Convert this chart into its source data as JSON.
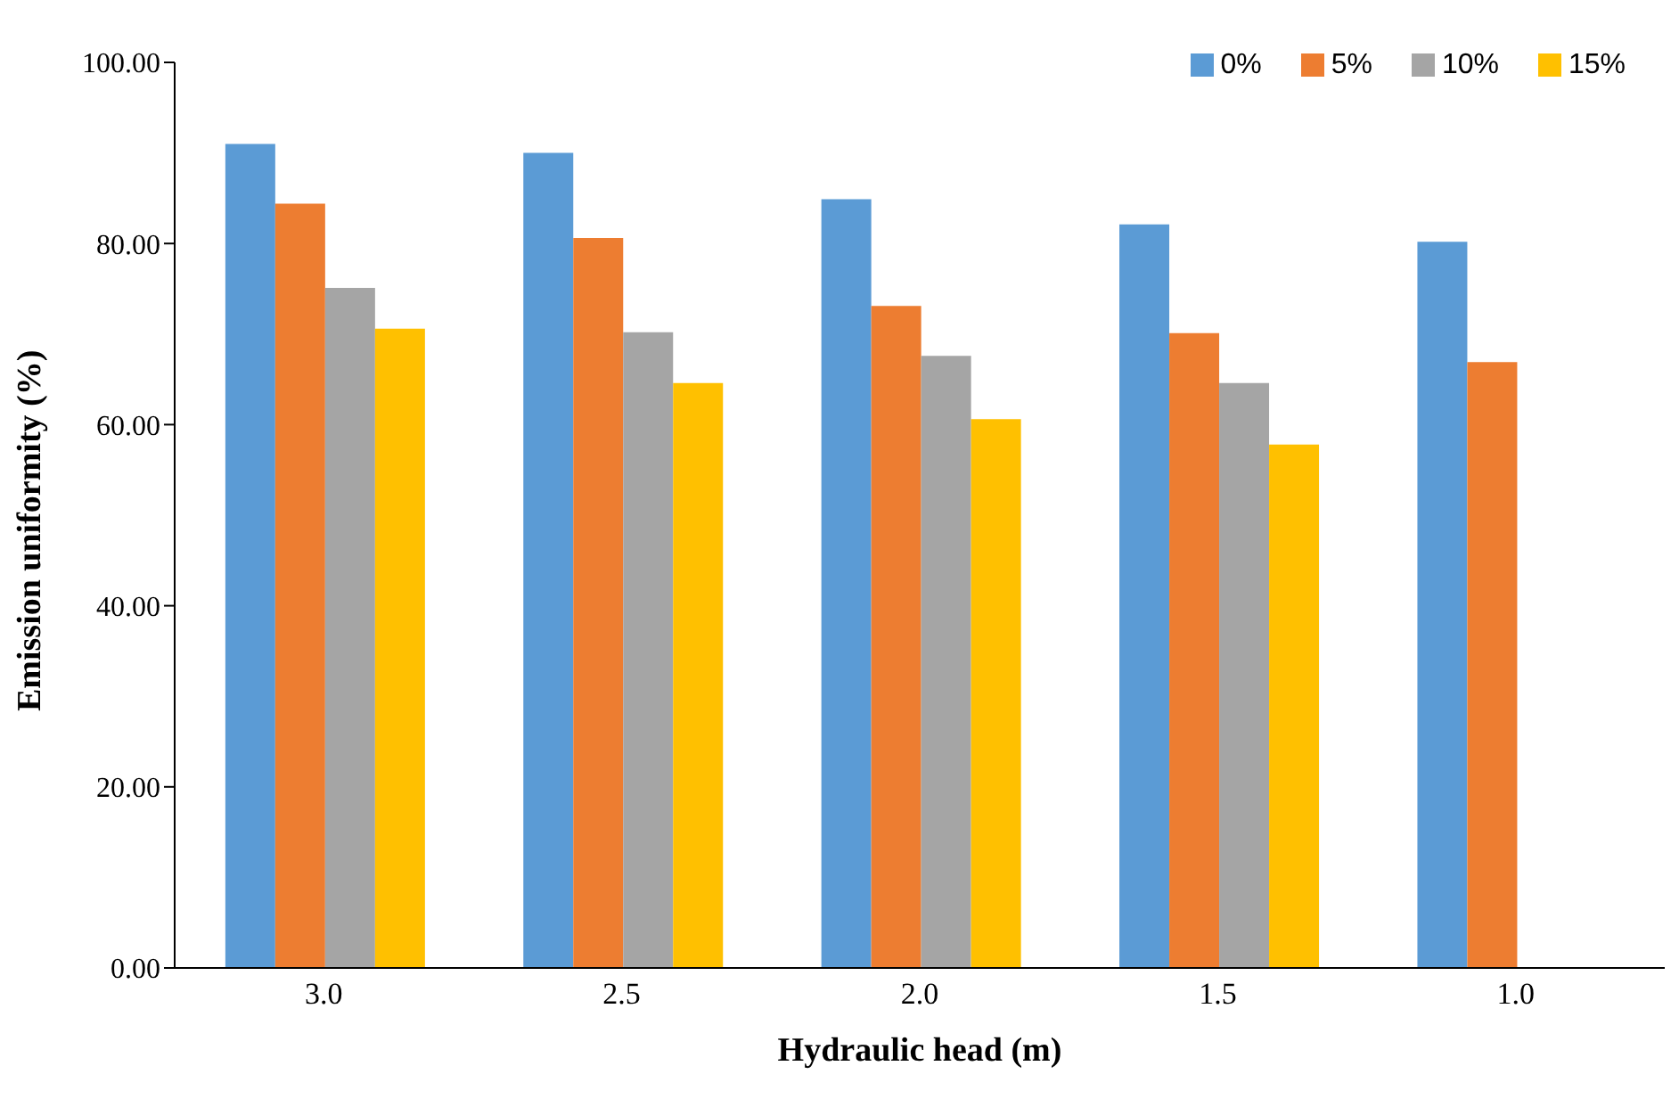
{
  "chart_data": {
    "type": "bar",
    "xlabel": "Hydraulic head (m)",
    "ylabel": "Emission uniformity (%)",
    "categories": [
      "3.0",
      "2.5",
      "2.0",
      "1.5",
      "1.0"
    ],
    "series": [
      {
        "name": "0%",
        "color": "#5b9bd5",
        "values": [
          91.0,
          90.0,
          84.9,
          82.1,
          80.2
        ]
      },
      {
        "name": "5%",
        "color": "#ed7d31",
        "values": [
          84.4,
          80.6,
          73.1,
          70.1,
          66.9
        ]
      },
      {
        "name": "10%",
        "color": "#a5a5a5",
        "values": [
          75.1,
          70.2,
          67.6,
          64.6,
          null
        ]
      },
      {
        "name": "15%",
        "color": "#ffc000",
        "values": [
          70.6,
          64.6,
          60.6,
          57.8,
          null
        ]
      }
    ],
    "ylim": [
      0,
      100
    ],
    "yticks": [
      {
        "value": 0,
        "label": "0.00"
      },
      {
        "value": 20,
        "label": "20.00"
      },
      {
        "value": 40,
        "label": "40.00"
      },
      {
        "value": 60,
        "label": "60.00"
      },
      {
        "value": 80,
        "label": "80.00"
      },
      {
        "value": 100,
        "label": "100.00"
      }
    ],
    "grid": false,
    "legend": "top right"
  }
}
